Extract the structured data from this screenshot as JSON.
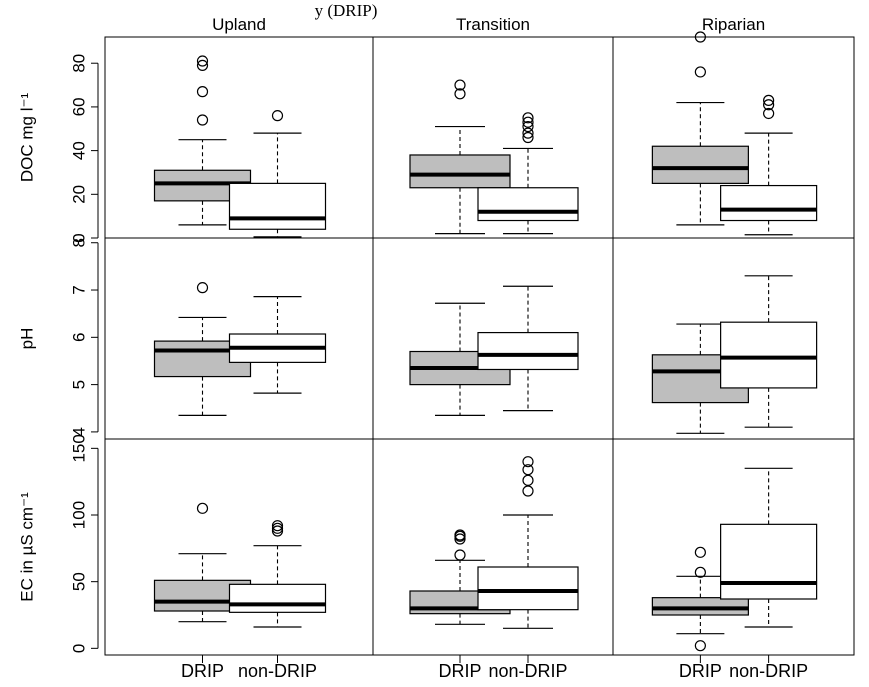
{
  "header_fragment": "y (DRIP)",
  "chart_data": {
    "type": "boxplot",
    "groups": [
      "Upland",
      "Transition",
      "Riparian"
    ],
    "categories": [
      "DRIP",
      "non-DRIP"
    ],
    "fill_colors": {
      "DRIP": "#bebebe",
      "non-DRIP": "#ffffff"
    },
    "rows": [
      {
        "ylabel": "DOC mg l⁻¹",
        "ylim": [
          0,
          92
        ],
        "yticks": [
          0,
          20,
          40,
          60,
          80
        ],
        "tick_labels": [
          "0",
          "20",
          "40",
          "60",
          "80"
        ],
        "boxes": [
          {
            "group": "Upland",
            "category": "DRIP",
            "whisker_low": 6,
            "q1": 17,
            "median": 25,
            "q3": 31,
            "whisker_high": 45,
            "outliers": [
              54,
              67,
              79,
              81
            ]
          },
          {
            "group": "Upland",
            "category": "non-DRIP",
            "whisker_low": 0.5,
            "q1": 4,
            "median": 9,
            "q3": 25,
            "whisker_high": 48,
            "outliers": [
              56
            ]
          },
          {
            "group": "Transition",
            "category": "DRIP",
            "whisker_low": 2,
            "q1": 23,
            "median": 29,
            "q3": 38,
            "whisker_high": 51,
            "outliers": [
              66,
              70
            ]
          },
          {
            "group": "Transition",
            "category": "non-DRIP",
            "whisker_low": 2,
            "q1": 8,
            "median": 12,
            "q3": 23,
            "whisker_high": 41,
            "outliers": [
              46,
              48,
              51,
              53,
              55
            ]
          },
          {
            "group": "Riparian",
            "category": "DRIP",
            "whisker_low": 6,
            "q1": 25,
            "median": 32,
            "q3": 42,
            "whisker_high": 62,
            "outliers": [
              76,
              92
            ]
          },
          {
            "group": "Riparian",
            "category": "non-DRIP",
            "whisker_low": 1.5,
            "q1": 8,
            "median": 13,
            "q3": 24,
            "whisker_high": 48,
            "outliers": [
              57,
              61,
              63
            ]
          }
        ]
      },
      {
        "ylabel": "pH",
        "ylim": [
          3.85,
          8.1
        ],
        "yticks": [
          4,
          5,
          6,
          7,
          8
        ],
        "tick_labels": [
          "4",
          "5",
          "6",
          "7",
          "8"
        ],
        "boxes": [
          {
            "group": "Upland",
            "category": "DRIP",
            "whisker_low": 4.35,
            "q1": 5.17,
            "median": 5.72,
            "q3": 5.92,
            "whisker_high": 6.42,
            "outliers": [
              7.05
            ]
          },
          {
            "group": "Upland",
            "category": "non-DRIP",
            "whisker_low": 4.82,
            "q1": 5.47,
            "median": 5.78,
            "q3": 6.07,
            "whisker_high": 6.86,
            "outliers": []
          },
          {
            "group": "Transition",
            "category": "DRIP",
            "whisker_low": 4.35,
            "q1": 5.0,
            "median": 5.35,
            "q3": 5.7,
            "whisker_high": 6.72,
            "outliers": []
          },
          {
            "group": "Transition",
            "category": "non-DRIP",
            "whisker_low": 4.45,
            "q1": 5.32,
            "median": 5.63,
            "q3": 6.1,
            "whisker_high": 7.08,
            "outliers": []
          },
          {
            "group": "Riparian",
            "category": "DRIP",
            "whisker_low": 3.97,
            "q1": 4.62,
            "median": 5.28,
            "q3": 5.63,
            "whisker_high": 6.28,
            "outliers": []
          },
          {
            "group": "Riparian",
            "category": "non-DRIP",
            "whisker_low": 4.1,
            "q1": 4.93,
            "median": 5.57,
            "q3": 6.32,
            "whisker_high": 7.3,
            "outliers": []
          }
        ]
      },
      {
        "ylabel": "EC in µS cm⁻¹",
        "ylim": [
          -5,
          157
        ],
        "yticks": [
          0,
          50,
          100,
          150
        ],
        "tick_labels": [
          "0",
          "50",
          "100",
          "150"
        ],
        "boxes": [
          {
            "group": "Upland",
            "category": "DRIP",
            "whisker_low": 20,
            "q1": 28,
            "median": 35,
            "q3": 51,
            "whisker_high": 71,
            "outliers": [
              105
            ]
          },
          {
            "group": "Upland",
            "category": "non-DRIP",
            "whisker_low": 16,
            "q1": 27,
            "median": 33,
            "q3": 48,
            "whisker_high": 77,
            "outliers": [
              88,
              90,
              92
            ]
          },
          {
            "group": "Transition",
            "category": "DRIP",
            "whisker_low": 18,
            "q1": 26,
            "median": 30,
            "q3": 43,
            "whisker_high": 66,
            "outliers": [
              70,
              82,
              84,
              85
            ]
          },
          {
            "group": "Transition",
            "category": "non-DRIP",
            "whisker_low": 15,
            "q1": 29,
            "median": 43,
            "q3": 61,
            "whisker_high": 100,
            "outliers": [
              118,
              126,
              134,
              140
            ]
          },
          {
            "group": "Riparian",
            "category": "DRIP",
            "whisker_low": 11,
            "q1": 25,
            "median": 30,
            "q3": 38,
            "whisker_high": 54,
            "outliers": [
              2,
              57,
              72
            ]
          },
          {
            "group": "Riparian",
            "category": "non-DRIP",
            "whisker_low": 16,
            "q1": 37,
            "median": 49,
            "q3": 93,
            "whisker_high": 135,
            "outliers": []
          }
        ]
      }
    ]
  }
}
